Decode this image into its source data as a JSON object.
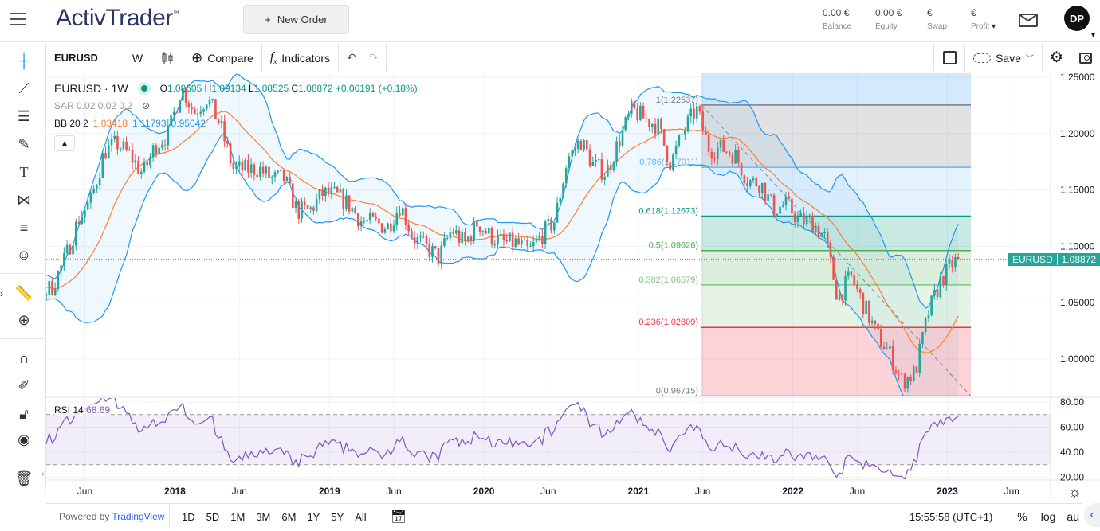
{
  "header": {
    "logo": "ActivTrader",
    "logo_tm": "™",
    "new_order": "New Order",
    "new_order_icon": "+",
    "stats": [
      {
        "value": "0.00 €",
        "label": "Balance"
      },
      {
        "value": "0.00 €",
        "label": "Equity"
      },
      {
        "value": "€",
        "label": "Swap"
      },
      {
        "value": "€",
        "label": "Profit"
      }
    ],
    "avatar": "DP"
  },
  "toolbar": {
    "symbol": "EURUSD",
    "interval": "W",
    "compare": "Compare",
    "indicators": "Indicators",
    "save": "Save"
  },
  "legend": {
    "title": "EURUSD · 1W",
    "o_label": "O",
    "o": "1.08605",
    "h_label": "H",
    "h": "1.09134",
    "l_label": "L",
    "l": "1.08525",
    "c_label": "C",
    "c": "1.08872",
    "change": "+0.00191 (+0.18%)",
    "sar": "SAR 0.02 0.02 0.2",
    "bb_label": "BB 20 2",
    "bb_basis": "1.03418",
    "bb_upper": "1.11793",
    "bb_lower": "0.95042"
  },
  "rsi_legend": {
    "label": "RSI 14",
    "value": "68.69"
  },
  "price_tag": {
    "symbol": "EURUSD",
    "price": "1.08872"
  },
  "bottom": {
    "powered": "Powered by ",
    "tv": "TradingView",
    "ranges": [
      "1D",
      "5D",
      "1M",
      "3M",
      "6M",
      "1Y",
      "5Y",
      "All"
    ],
    "clock": "15:55:58 (UTC+1)",
    "pct": "%",
    "log": "log",
    "auto": "au"
  },
  "colors": {
    "up": "#26a69a",
    "down": "#ef5350",
    "bb": "#2196f3",
    "basis": "#ff7f2a",
    "rsi": "#7e57c2",
    "accent": "#2962ff"
  },
  "chart_data": [
    {
      "type": "candlestick",
      "symbol": "EURUSD",
      "interval": "1W",
      "x_ticks": [
        {
          "label": "Jun",
          "date": "2017-06"
        },
        {
          "label": "2018",
          "date": "2018-01"
        },
        {
          "label": "Jun",
          "date": "2018-06"
        },
        {
          "label": "2019",
          "date": "2019-01"
        },
        {
          "label": "Jun",
          "date": "2019-06"
        },
        {
          "label": "2020",
          "date": "2020-01"
        },
        {
          "label": "Jun",
          "date": "2020-06"
        },
        {
          "label": "2021",
          "date": "2021-01"
        },
        {
          "label": "Jun",
          "date": "2021-06"
        },
        {
          "label": "2022",
          "date": "2022-01"
        },
        {
          "label": "Jun",
          "date": "2022-06"
        },
        {
          "label": "2023",
          "date": "2023-01"
        },
        {
          "label": "Jun",
          "date": "2023-06"
        }
      ],
      "y_ticks": [
        "1.25000",
        "1.20000",
        "1.15000",
        "1.10000",
        "1.05000",
        "1.00000"
      ],
      "ylim": [
        0.965,
        1.254
      ],
      "monthly_close_start": "2017-03",
      "monthly_close": [
        1.065,
        1.09,
        1.124,
        1.141,
        1.184,
        1.191,
        1.181,
        1.164,
        1.19,
        1.2,
        1.241,
        1.219,
        1.232,
        1.208,
        1.169,
        1.168,
        1.169,
        1.16,
        1.16,
        1.131,
        1.132,
        1.147,
        1.145,
        1.137,
        1.122,
        1.121,
        1.117,
        1.137,
        1.108,
        1.099,
        1.09,
        1.115,
        1.102,
        1.121,
        1.109,
        1.103,
        1.103,
        1.095,
        1.11,
        1.123,
        1.178,
        1.194,
        1.172,
        1.165,
        1.194,
        1.221,
        1.213,
        1.207,
        1.173,
        1.202,
        1.222,
        1.186,
        1.187,
        1.181,
        1.158,
        1.156,
        1.133,
        1.137,
        1.123,
        1.122,
        1.107,
        1.054,
        1.073,
        1.048,
        1.022,
        1.005,
        0.98,
        0.988,
        1.04,
        1.07,
        1.086,
        1.08872
      ],
      "last_price": 1.08872,
      "fibonacci": [
        {
          "level": "1",
          "price": "1.22537",
          "color": "#787b86"
        },
        {
          "level": "0.786",
          "price": "1.17011",
          "color": "#64b5f6"
        },
        {
          "level": "0.618",
          "price": "1.12673",
          "color": "#089981"
        },
        {
          "level": "0.5",
          "price": "1.09626",
          "color": "#4caf50"
        },
        {
          "level": "0.382",
          "price": "1.06579",
          "color": "#81c784"
        },
        {
          "level": "0.236",
          "price": "1.02809",
          "color": "#f23645"
        },
        {
          "level": "0",
          "price": "0.96715",
          "color": "#787b86"
        }
      ]
    },
    {
      "type": "line",
      "name": "RSI 14",
      "y_ticks": [
        "80.00",
        "60.00",
        "40.00",
        "20.00"
      ],
      "ylim": [
        20,
        80
      ],
      "bands": [
        30,
        70
      ],
      "last": 68.69
    }
  ]
}
